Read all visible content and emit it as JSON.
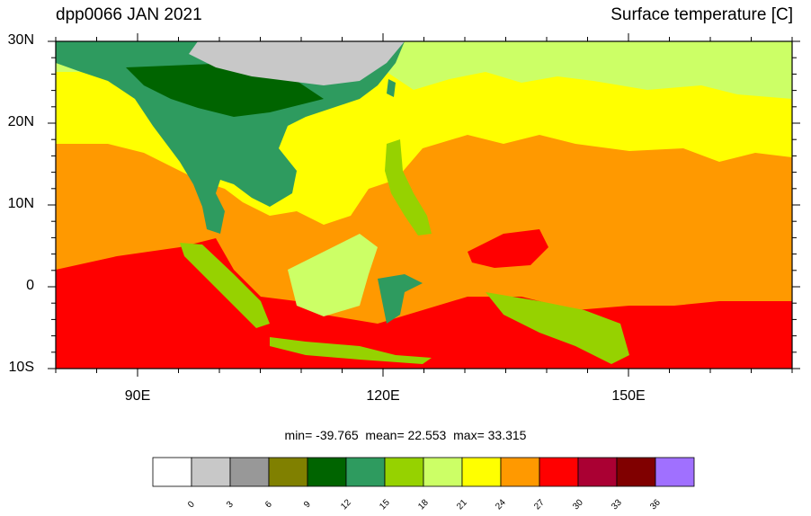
{
  "title_left": "dpp0066 JAN 2021",
  "title_right": "Surface temperature [C]",
  "y_ticks": [
    {
      "label": "30N",
      "value": 30
    },
    {
      "label": "20N",
      "value": 20
    },
    {
      "label": "10N",
      "value": 10
    },
    {
      "label": "0",
      "value": 0
    },
    {
      "label": "10S",
      "value": -10
    }
  ],
  "x_ticks": [
    {
      "label": "90E",
      "value": 90
    },
    {
      "label": "120E",
      "value": 120
    },
    {
      "label": "150E",
      "value": 150
    }
  ],
  "stats": {
    "min_label": "min=",
    "min": "-39.765",
    "mean_label": "mean=",
    "mean": "22.553",
    "max_label": "max=",
    "max": "33.315"
  },
  "colorbar": {
    "labels": [
      "0",
      "3",
      "6",
      "9",
      "12",
      "15",
      "18",
      "21",
      "24",
      "27",
      "30",
      "33",
      "36"
    ],
    "colors": [
      "#ffffff",
      "#c8c8c8",
      "#989898",
      "#808000",
      "#006400",
      "#2e9b5f",
      "#96d200",
      "#ccff66",
      "#ffff00",
      "#ff9900",
      "#ff0000",
      "#aa0033",
      "#800000",
      "#a070ff"
    ]
  },
  "colors": {
    "sea_warm": "#ff9900",
    "sea_hot": "#ff0000",
    "sea_mild": "#ffff00",
    "sea_cool": "#ccff66",
    "land_green": "#2e9b5f",
    "land_dark": "#006400",
    "land_light": "#96d200",
    "snow": "#c8c8c8"
  }
}
